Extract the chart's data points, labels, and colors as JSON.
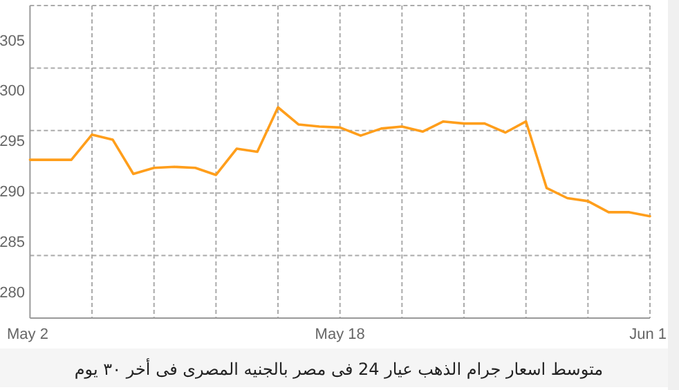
{
  "chart_data": {
    "type": "line",
    "categories": [
      "May 2",
      null,
      null,
      null,
      null,
      null,
      null,
      null,
      null,
      null,
      null,
      null,
      null,
      null,
      null,
      "May 18",
      null,
      null,
      null,
      null,
      null,
      null,
      null,
      null,
      null,
      null,
      null,
      null,
      null,
      null,
      "Jun 1"
    ],
    "series": [
      {
        "color": "#ff9e1b",
        "values": [
          293.1,
          293.1,
          293.1,
          295.6,
          295.1,
          291.7,
          292.3,
          292.4,
          292.3,
          291.6,
          294.2,
          293.9,
          298.3,
          296.6,
          296.4,
          296.3,
          295.5,
          296.2,
          296.4,
          295.9,
          296.9,
          296.7,
          296.7,
          295.8,
          296.9,
          290.3,
          289.3,
          289.0,
          287.9,
          287.9,
          287.5
        ]
      }
    ],
    "ylim": [
      277.4,
      308.4
    ],
    "yticks": [
      280,
      285,
      290,
      295,
      300,
      305,
      {
        "value": 283.6,
        "label": null
      },
      {
        "value": 289.8,
        "label": null
      },
      {
        "value": 296.0,
        "label": null
      },
      {
        "value": 302.2,
        "label": null
      }
    ],
    "grid": true,
    "marker": "none",
    "line_style": "solid",
    "annotations": [
      "متوسط اسعار جرام الذهب عيار 24 فى مصر بالجنيه المصرى فى أخر ٣٠ يوم"
    ]
  }
}
